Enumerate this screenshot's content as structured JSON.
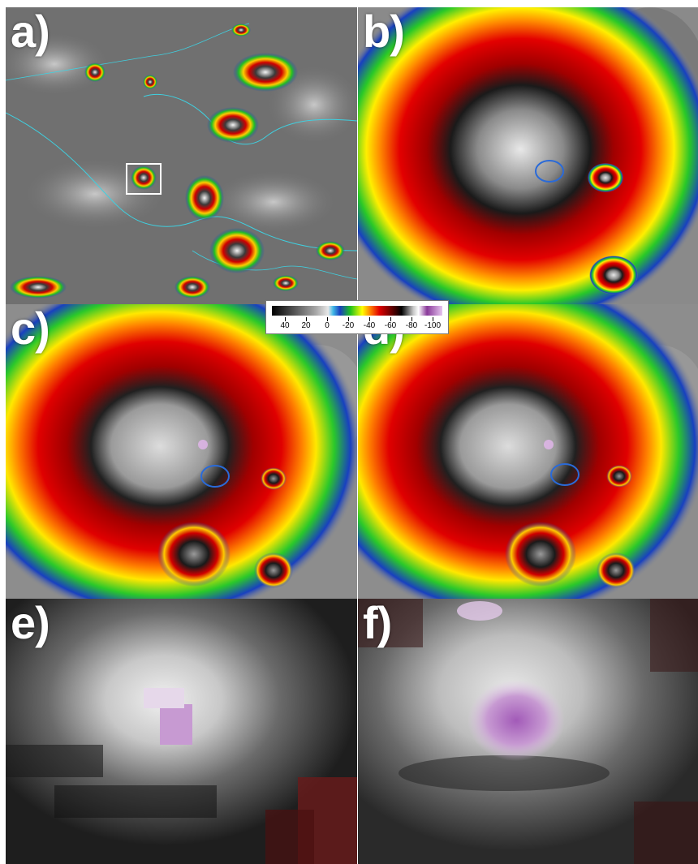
{
  "figure": {
    "panels": [
      {
        "id": "a",
        "label": "a)"
      },
      {
        "id": "b",
        "label": "b)"
      },
      {
        "id": "c",
        "label": "c)"
      },
      {
        "id": "d",
        "label": "d)"
      },
      {
        "id": "e",
        "label": "e)"
      },
      {
        "id": "f",
        "label": "f)"
      }
    ],
    "colorbar": {
      "tick_labels": [
        "40",
        "20",
        "0",
        "-20",
        "-40",
        "-60",
        "-80",
        "-100"
      ]
    }
  }
}
